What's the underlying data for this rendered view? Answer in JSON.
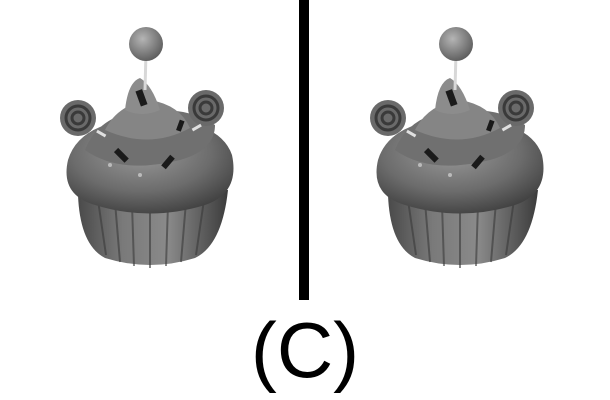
{
  "caption": "(C)",
  "panels": [
    {
      "image": "cupcake-with-lollipop-grayscale"
    },
    {
      "image": "cupcake-with-lollipop-grayscale"
    }
  ],
  "colors": {
    "background": "#ffffff",
    "divider": "#000000",
    "caption": "#000000"
  }
}
